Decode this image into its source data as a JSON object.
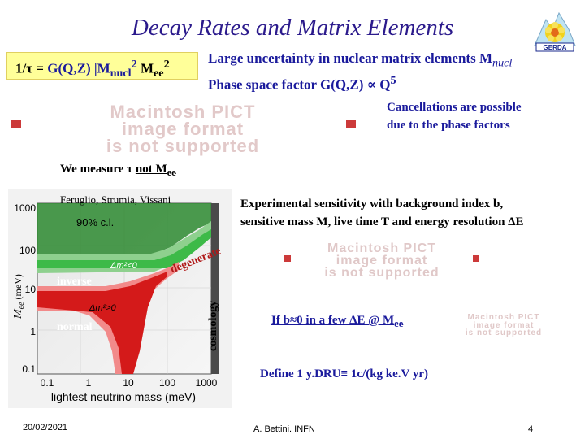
{
  "title": "Decay Rates and Matrix Elements",
  "formula": {
    "lhs": "1/τ = ",
    "g": "G(Q,Z) |M",
    "g_sub": "nucl",
    "g_sup": "2",
    "m": " M",
    "m_sub": "ee",
    "m_sup": "2"
  },
  "uncertainty": {
    "line1": "Large uncertainty in nuclear matrix elements M",
    "line1_sub": "nucl",
    "line2": "Phase space factor G(Q,Z) ∝ Q",
    "line2_sup": "5"
  },
  "logo": {
    "label": "GERDA"
  },
  "pict_placeholder": {
    "line1": "Macintosh PICT",
    "line2": "image format",
    "line3": "is not supported"
  },
  "cancellation": {
    "line1": "Cancellations are possible",
    "line2": "due to the phase factors"
  },
  "measure": {
    "prefix": "We measure τ ",
    "underlined": "not M",
    "sub": "ee"
  },
  "plot": {
    "authors": "Feruglio, Strumia, Vissani",
    "cl": "90% c.l.",
    "y_ticks": [
      "1000",
      "100",
      "10",
      "1",
      "0.1"
    ],
    "x_ticks": [
      "0.1",
      "1",
      "10",
      "100",
      "1000"
    ],
    "xlabel": "lightest neutrino mass (meV)",
    "ylabel": "M",
    "ylabel_sub": "ee",
    "ylabel_unit": " (meV)",
    "inverse": "inverse",
    "normal": "normal",
    "dm_pos": "Δm²>0",
    "dm_neg": "Δm²<0",
    "degenerate": "degenerate",
    "cosmology": "cosmology"
  },
  "experimental": {
    "line1": "Experimental sensitivity with background index b,",
    "line2": "sensitive mass M, live time T and energy resolution ΔE"
  },
  "ifb": {
    "prefix": "If b≈0 in a few ΔE @ M",
    "sub": "ee"
  },
  "define": "Define 1 y.DRU≡ 1c/(kg ke.V yr)",
  "footer": {
    "date": "20/02/2021",
    "author": "A. Bettini. INFN",
    "page": "4"
  },
  "colors": {
    "title": "#2b1a8c",
    "blue_text": "#1a1a9c",
    "formula_bg": "#ffff99",
    "green": "#2fb040",
    "red": "#d01818"
  }
}
